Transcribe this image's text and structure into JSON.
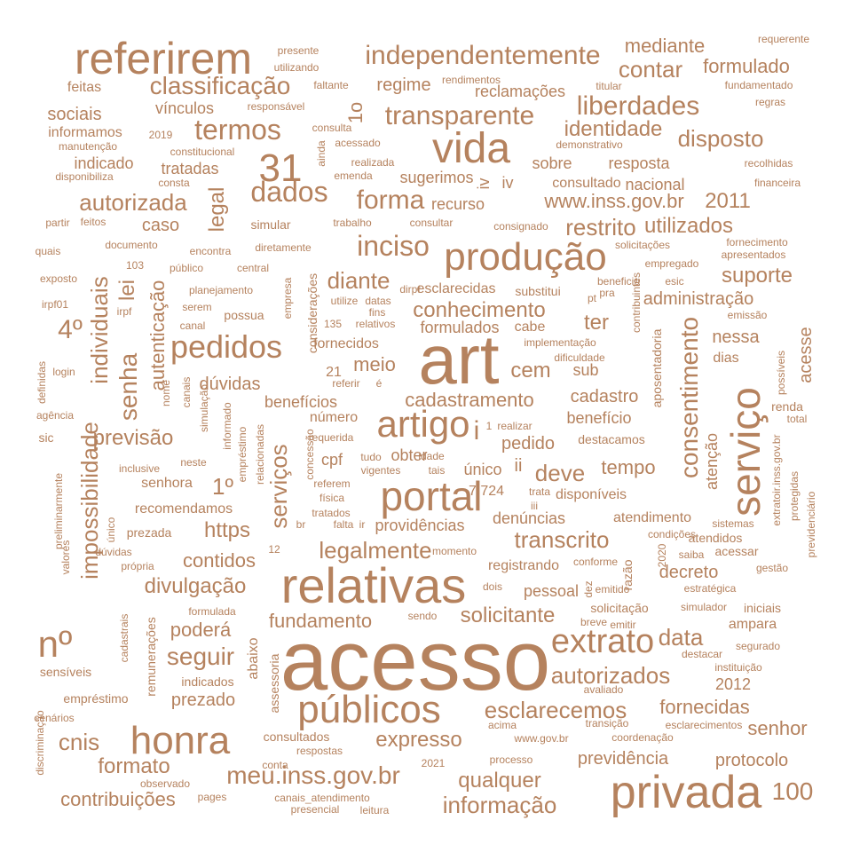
{
  "color": "#b5825e",
  "words": [
    {
      "text": "acesso"
    },
    {
      "text": "art"
    },
    {
      "text": "relativas"
    },
    {
      "text": "privada"
    },
    {
      "text": "honra"
    },
    {
      "text": "públicos"
    },
    {
      "text": "serviço"
    },
    {
      "text": "portal"
    },
    {
      "text": "vida"
    },
    {
      "text": "produção"
    },
    {
      "text": "referirem"
    },
    {
      "text": "artigo"
    },
    {
      "text": "extrato"
    },
    {
      "text": "31"
    },
    {
      "text": "nº"
    },
    {
      "text": "pedidos"
    },
    {
      "text": "independentemente"
    },
    {
      "text": "classificação"
    },
    {
      "text": "transparente"
    },
    {
      "text": "liberdades"
    },
    {
      "text": "termos"
    },
    {
      "text": "dados"
    },
    {
      "text": "forma"
    },
    {
      "text": "inciso"
    },
    {
      "text": "restrito"
    },
    {
      "text": "autorizada"
    },
    {
      "text": "disposto"
    },
    {
      "text": "identidade"
    },
    {
      "text": "contar"
    },
    {
      "text": "formulado"
    },
    {
      "text": "mediante"
    },
    {
      "text": "consentimento"
    },
    {
      "text": "serviços"
    },
    {
      "text": "senha"
    },
    {
      "text": "individuais"
    },
    {
      "text": "impossibilidade"
    },
    {
      "text": "diante"
    },
    {
      "text": "conhecimento"
    },
    {
      "text": "cadastramento"
    },
    {
      "text": "divulgação"
    },
    {
      "text": "legalmente"
    },
    {
      "text": "transcrito"
    },
    {
      "text": "esclarecemos"
    },
    {
      "text": "autorizados"
    },
    {
      "text": "informação"
    },
    {
      "text": "meu.inss.gov.br"
    },
    {
      "text": "expresso"
    },
    {
      "text": "qualquer"
    },
    {
      "text": "solicitante"
    },
    {
      "text": "seguir"
    },
    {
      "text": "cnis"
    },
    {
      "text": "formato"
    },
    {
      "text": "fundamento"
    },
    {
      "text": "contribuições"
    },
    {
      "text": "previsão"
    },
    {
      "text": "data"
    },
    {
      "text": "suporte"
    },
    {
      "text": "utilizados"
    },
    {
      "text": "www.inss.gov.br"
    },
    {
      "text": "2011"
    },
    {
      "text": "100"
    },
    {
      "text": "4º"
    },
    {
      "text": "1º"
    },
    {
      "text": "https"
    },
    {
      "text": "contidos"
    },
    {
      "text": "poderá"
    },
    {
      "text": "previdência"
    },
    {
      "text": "protocolo"
    },
    {
      "text": "senhor"
    },
    {
      "text": "fornecidas"
    },
    {
      "text": "prezado"
    },
    {
      "text": "deve"
    },
    {
      "text": "tempo"
    },
    {
      "text": "cem"
    },
    {
      "text": "meio"
    },
    {
      "text": "ter"
    },
    {
      "text": "nessa"
    },
    {
      "text": "dúvidas"
    },
    {
      "text": "benefícios"
    },
    {
      "text": "cadastro"
    },
    {
      "text": "benefício"
    },
    {
      "text": "pedido"
    },
    {
      "text": "cpf"
    },
    {
      "text": "único"
    },
    {
      "text": "legal"
    },
    {
      "text": "lei"
    },
    {
      "text": "autenticação"
    },
    {
      "text": "atenção"
    },
    {
      "text": "acesse"
    },
    {
      "text": "administração"
    },
    {
      "text": "resposta"
    },
    {
      "text": "sobre"
    },
    {
      "text": "nacional"
    },
    {
      "text": "consultado"
    },
    {
      "text": "recurso"
    },
    {
      "text": "sugerimos"
    },
    {
      "text": "regime"
    },
    {
      "text": "reclamações"
    },
    {
      "text": "sociais"
    },
    {
      "text": "vínculos"
    },
    {
      "text": "indicado"
    },
    {
      "text": "tratadas"
    },
    {
      "text": "caso"
    },
    {
      "text": "informamos"
    },
    {
      "text": "feitas"
    },
    {
      "text": "1o"
    },
    {
      "text": "decreto"
    },
    {
      "text": "2012"
    },
    {
      "text": "providências"
    },
    {
      "text": "denúncias"
    },
    {
      "text": "atendimento"
    },
    {
      "text": "registrando"
    },
    {
      "text": "pessoal"
    },
    {
      "text": "recomendamos"
    },
    {
      "text": "senhora"
    },
    {
      "text": "formulados"
    },
    {
      "text": "fornecidos"
    },
    {
      "text": "cabe"
    },
    {
      "text": "obter"
    },
    {
      "text": "número"
    },
    {
      "text": "7.724"
    },
    {
      "text": "disponíveis"
    },
    {
      "text": "ii"
    },
    {
      "text": "sub"
    },
    {
      "text": "iv"
    },
    {
      "text": "esclarecidas"
    },
    {
      "text": "substitui"
    },
    {
      "text": "consultados"
    },
    {
      "text": "abaixo"
    },
    {
      "text": "assessoria"
    },
    {
      "text": "ampara"
    },
    {
      "text": "iniciais"
    },
    {
      "text": "empréstimo"
    },
    {
      "text": "sensíveis"
    },
    {
      "text": "cenários"
    },
    {
      "text": "indicados"
    },
    {
      "text": "formulada"
    },
    {
      "text": "remunerações"
    },
    {
      "text": "destacamos"
    },
    {
      "text": "solicitação"
    },
    {
      "text": "emitido"
    },
    {
      "text": "razão"
    },
    {
      "text": "conforme"
    },
    {
      "text": "acessar"
    },
    {
      "text": "atendidos"
    },
    {
      "text": "sistemas"
    },
    {
      "text": "dias"
    },
    {
      "text": "renda"
    },
    {
      "text": "total"
    },
    {
      "text": "possíveis"
    },
    {
      "text": "emissão"
    },
    {
      "text": "aposentadoria"
    },
    {
      "text": "contribuintes"
    },
    {
      "text": "dificuldade"
    },
    {
      "text": "implementação"
    },
    {
      "text": "beneficio"
    },
    {
      "text": "esic"
    },
    {
      "text": "empregado"
    },
    {
      "text": "apresentados"
    },
    {
      "text": "fornecimento"
    },
    {
      "text": "solicitações"
    },
    {
      "text": "consignado"
    },
    {
      "text": "consultar"
    },
    {
      "text": "trabalho"
    },
    {
      "text": "simular"
    },
    {
      "text": "feitos"
    },
    {
      "text": "partir"
    },
    {
      "text": "documento"
    },
    {
      "text": "encontra"
    },
    {
      "text": "diretamente"
    },
    {
      "text": "quais"
    },
    {
      "text": "exposto"
    },
    {
      "text": "irpf01"
    },
    {
      "text": "irpf"
    },
    {
      "text": "103"
    },
    {
      "text": "público"
    },
    {
      "text": "central"
    },
    {
      "text": "planejamento"
    },
    {
      "text": "serem"
    },
    {
      "text": "canal"
    },
    {
      "text": "possua"
    },
    {
      "text": "empresa"
    },
    {
      "text": "considerações"
    },
    {
      "text": "135"
    },
    {
      "text": "relativos"
    },
    {
      "text": "utilize"
    },
    {
      "text": "datas"
    },
    {
      "text": "fins"
    },
    {
      "text": "pt"
    },
    {
      "text": "pra"
    },
    {
      "text": "dirpf"
    },
    {
      "text": "login"
    },
    {
      "text": "definidas"
    },
    {
      "text": "agência"
    },
    {
      "text": "nome"
    },
    {
      "text": "canais"
    },
    {
      "text": "simulação"
    },
    {
      "text": "informado"
    },
    {
      "text": "empréstimo"
    },
    {
      "text": "relacionadas"
    },
    {
      "text": "concessão"
    },
    {
      "text": "referem"
    },
    {
      "text": "física"
    },
    {
      "text": "tratados"
    },
    {
      "text": "falta"
    },
    {
      "text": "ir"
    },
    {
      "text": "momento"
    },
    {
      "text": "br"
    },
    {
      "text": "12"
    },
    {
      "text": "iii"
    },
    {
      "text": "trata"
    },
    {
      "text": "inclusive"
    },
    {
      "text": "neste"
    },
    {
      "text": "prezada"
    },
    {
      "text": "dúvidas"
    },
    {
      "text": "própria"
    },
    {
      "text": "único"
    },
    {
      "text": "preliminarmente"
    },
    {
      "text": "valores"
    },
    {
      "text": "sic"
    },
    {
      "text": "21"
    },
    {
      "text": "referir"
    },
    {
      "text": "é"
    },
    {
      "text": "realizar"
    },
    {
      "text": "1"
    },
    {
      "text": "requerida"
    },
    {
      "text": "tudo"
    },
    {
      "text": "idade"
    },
    {
      "text": "vigentes"
    },
    {
      "text": "tais"
    },
    {
      "text": "manutenção"
    },
    {
      "text": "constitucional"
    },
    {
      "text": "2019"
    },
    {
      "text": "disponibiliza"
    },
    {
      "text": "consta"
    },
    {
      "text": "consulta"
    },
    {
      "text": "acessado"
    },
    {
      "text": "ainda"
    },
    {
      "text": "emenda"
    },
    {
      "text": "realizada"
    },
    {
      "text": "presente"
    },
    {
      "text": "utilizando"
    },
    {
      "text": "faltante"
    },
    {
      "text": "responsável"
    },
    {
      "text": "rendimentos"
    },
    {
      "text": "titular"
    },
    {
      "text": "fundamentado"
    },
    {
      "text": "regras"
    },
    {
      "text": "requerente"
    },
    {
      "text": "demonstrativo"
    },
    {
      "text": "recolhidas"
    },
    {
      "text": "financeira"
    },
    {
      "text": "extratoir.inss.gov.br"
    },
    {
      "text": "protegidas"
    },
    {
      "text": "previdenciário"
    },
    {
      "text": "gestão"
    },
    {
      "text": "2020"
    },
    {
      "text": "saiba"
    },
    {
      "text": "condições"
    },
    {
      "text": "estratégica"
    },
    {
      "text": "simulador"
    },
    {
      "text": "segurado"
    },
    {
      "text": "instituição"
    },
    {
      "text": "avaliado"
    },
    {
      "text": "destacar"
    },
    {
      "text": "acima"
    },
    {
      "text": "esclarecimentos"
    },
    {
      "text": "transição"
    },
    {
      "text": "coordenação"
    },
    {
      "text": "www.gov.br"
    },
    {
      "text": "processo"
    },
    {
      "text": "2021"
    },
    {
      "text": "observado"
    },
    {
      "text": "conta"
    },
    {
      "text": "respostas"
    },
    {
      "text": "pages"
    },
    {
      "text": "canais_atendimento"
    },
    {
      "text": "presencial"
    },
    {
      "text": "leitura"
    },
    {
      "text": "discriminação"
    },
    {
      "text": "cadastrais"
    },
    {
      "text": "sendo"
    },
    {
      "text": "breve"
    },
    {
      "text": "emitir"
    },
    {
      "text": "dois"
    },
    {
      "text": "dez"
    },
    {
      "text": "i"
    },
    {
      "text": "iv"
    }
  ]
}
